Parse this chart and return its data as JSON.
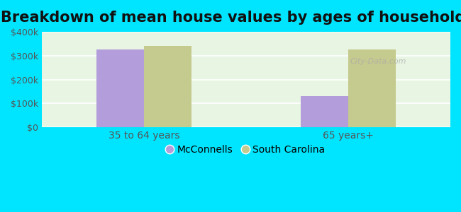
{
  "title": "Breakdown of mean house values by ages of householders",
  "categories": [
    "35 to 64 years",
    "65 years+"
  ],
  "series": {
    "McConnells": [
      325000,
      130000
    ],
    "South Carolina": [
      340000,
      325000
    ]
  },
  "bar_colors": {
    "McConnells": "#b39ddb",
    "South Carolina": "#c5ca8e"
  },
  "ylim": [
    0,
    400000
  ],
  "yticks": [
    0,
    100000,
    200000,
    300000,
    400000
  ],
  "ytick_labels": [
    "$0",
    "$100k",
    "$200k",
    "$300k",
    "$400k"
  ],
  "background_color": "#00e5ff",
  "title_fontsize": 15,
  "bar_width": 0.35,
  "group_positions": [
    0.75,
    2.25
  ]
}
